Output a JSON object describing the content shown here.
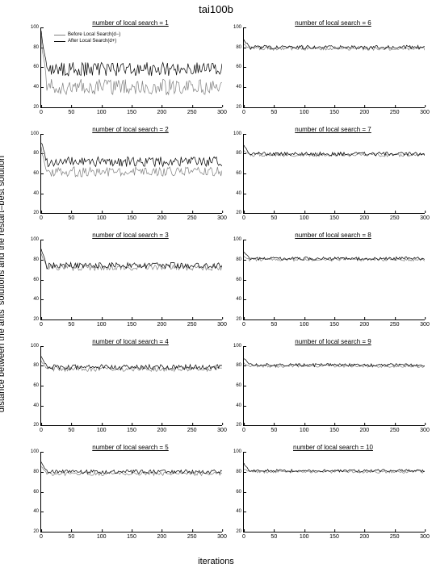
{
  "main_title": "tai100b",
  "ylabel": "distance between the ants' solutions and the restart–best solution",
  "xlabel": "iterations",
  "colors": {
    "background": "#ffffff",
    "before": "#808080",
    "after": "#000000",
    "axis": "#000000",
    "text": "#000000"
  },
  "legend": {
    "show_in_panel": 0,
    "items": [
      {
        "label": "Before Local Search(d−)",
        "color": "#808080"
      },
      {
        "label": "After Local Search(d+)",
        "color": "#000000"
      }
    ]
  },
  "axes": {
    "xlim": [
      0,
      300
    ],
    "xticks": [
      0,
      50,
      100,
      150,
      200,
      250,
      300
    ],
    "ylim": [
      20,
      100
    ],
    "yticks": [
      20,
      40,
      60,
      80,
      100
    ],
    "line_width": 1,
    "tick_fontsize": 7,
    "title_fontsize": 8
  },
  "panels": [
    {
      "title": "number of local search = 1",
      "before_baseline": 40,
      "before_noise": 8,
      "after_baseline": 58,
      "after_noise": 7,
      "start_high": 95
    },
    {
      "title": "number of local search = 2",
      "before_baseline": 62,
      "before_noise": 5,
      "after_baseline": 72,
      "after_noise": 5,
      "start_high": 92
    },
    {
      "title": "number of local search = 3",
      "before_baseline": 72,
      "before_noise": 3,
      "after_baseline": 74,
      "after_noise": 3,
      "start_high": 90
    },
    {
      "title": "number of local search = 4",
      "before_baseline": 77,
      "before_noise": 2.5,
      "after_baseline": 79,
      "after_noise": 2.5,
      "start_high": 90
    },
    {
      "title": "number of local search = 5",
      "before_baseline": 78,
      "before_noise": 2,
      "after_baseline": 80,
      "after_noise": 2,
      "start_high": 90
    },
    {
      "title": "number of local search = 6",
      "before_baseline": 79,
      "before_noise": 2,
      "after_baseline": 80,
      "after_noise": 2,
      "start_high": 88
    },
    {
      "title": "number of local search = 7",
      "before_baseline": 79,
      "before_noise": 1.8,
      "after_baseline": 80,
      "after_noise": 1.8,
      "start_high": 88
    },
    {
      "title": "number of local search = 8",
      "before_baseline": 80,
      "before_noise": 1.6,
      "after_baseline": 81,
      "after_noise": 1.6,
      "start_high": 88
    },
    {
      "title": "number of local search = 9",
      "before_baseline": 80,
      "before_noise": 1.5,
      "after_baseline": 81,
      "after_noise": 1.5,
      "start_high": 88
    },
    {
      "title": "number of local search = 10",
      "before_baseline": 80,
      "before_noise": 1.4,
      "after_baseline": 81,
      "after_noise": 1.4,
      "start_high": 88
    }
  ]
}
